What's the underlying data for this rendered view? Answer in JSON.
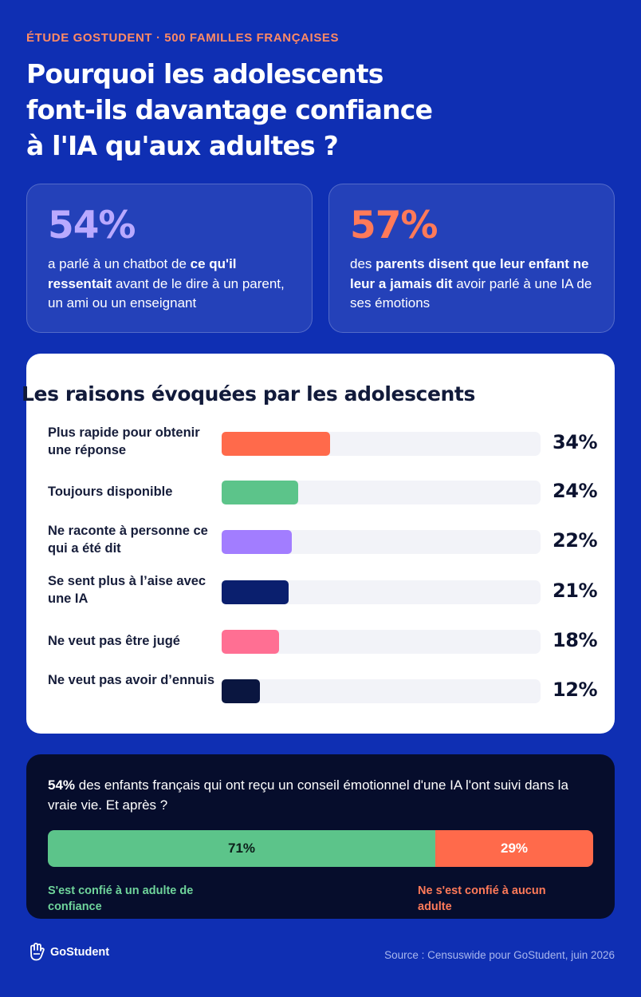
{
  "header": {
    "kicker": "ÉTUDE GOSTUDENT · 500 FAMILLES FRANÇAISES",
    "title_lines": [
      "Pourquoi les adolescents",
      "font-ils davantage confiance",
      "à l'IA qu'aux adultes ?"
    ]
  },
  "stats": [
    {
      "value": "54%",
      "color": "#b9a9ff",
      "parts": [
        {
          "text": "a parlé à un chatbot de ",
          "bold": false
        },
        {
          "text": "ce qu'il ressentait",
          "bold": true
        },
        {
          "text": " avant de le dire à un parent, un ami ou un enseignant",
          "bold": false
        }
      ]
    },
    {
      "value": "57%",
      "color": "#ff7a59",
      "parts": [
        {
          "text": "des ",
          "bold": false
        },
        {
          "text": "parents disent que leur enfant ne leur a jamais dit",
          "bold": true
        },
        {
          "text": " avoir parlé à une IA de ses émotions",
          "bold": false
        }
      ]
    }
  ],
  "reasons": {
    "title": "Les raisons évoquées par les adolescents"
  },
  "chart_data": {
    "type": "bar",
    "orientation": "horizontal",
    "title": "Les raisons évoquées par les adolescents",
    "categories": [
      "Plus rapide pour obtenir une réponse",
      "Toujours disponible",
      "Ne raconte à personne ce qui a été dit",
      "Se sent plus à l’aise avec une IA",
      "Ne veut pas être jugé",
      "Ne veut pas avoir d’ennuis"
    ],
    "values": [
      34,
      24,
      22,
      21,
      18,
      12
    ],
    "value_labels": [
      "34%",
      "24%",
      "22%",
      "21%",
      "18%",
      "12%"
    ],
    "colors": [
      "#ff6a4b",
      "#5cc48a",
      "#a27dff",
      "#0a1f6e",
      "#ff6f93",
      "#0a1640"
    ],
    "xlim": [
      0,
      100
    ]
  },
  "followup": {
    "lead_bold": "54%",
    "lead_rest": " des enfants français qui ont reçu un conseil émotionnel d'une IA l'ont suivi dans la vraie vie. Et après ?",
    "split": [
      {
        "value": 71,
        "label": "71%",
        "legend": "S'est confié à un adulte de confiance",
        "color": "#5cc48a",
        "text_color": "#0c1f1a"
      },
      {
        "value": 29,
        "label": "29%",
        "legend": "Ne s'est confié à aucun adulte",
        "color": "#ff6a4b",
        "text_color": "#ffffff"
      }
    ],
    "legend_colors": [
      "#6fd49b",
      "#ff7a59"
    ]
  },
  "footer": {
    "brand": "GoStudent",
    "source": "Source : Censuswide pour GoStudent, juin 2026"
  }
}
